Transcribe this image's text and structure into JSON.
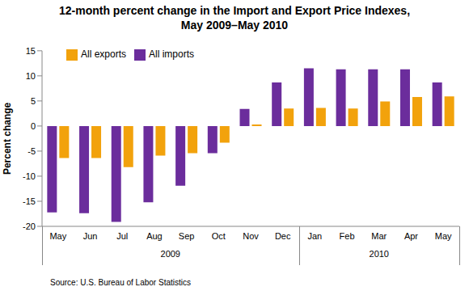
{
  "chart_data": {
    "type": "bar",
    "title": "12-month percent change in the Import and Export Price Indexes,",
    "subtitle": "May 2009–May 2010",
    "y_label": "Percent change",
    "source": "Source: U.S. Bureau of Labor Statistics",
    "categories": [
      "May",
      "Jun",
      "Jul",
      "Aug",
      "Sep",
      "Oct",
      "Nov",
      "Dec",
      "Jan",
      "Feb",
      "Mar",
      "Apr",
      "May"
    ],
    "x_groups": [
      {
        "label": "2009",
        "count": 8
      },
      {
        "label": "2010",
        "count": 5
      }
    ],
    "series": [
      {
        "name": "All imports",
        "color": "#6b2d9c",
        "values": [
          -17.2,
          -17.4,
          -19.1,
          -15.2,
          -11.9,
          -5.4,
          3.4,
          8.7,
          11.5,
          11.3,
          11.3,
          11.3,
          8.7
        ]
      },
      {
        "name": "All exports",
        "color": "#f2a20c",
        "values": [
          -6.4,
          -6.4,
          -8.2,
          -5.9,
          -5.4,
          -3.3,
          0.3,
          3.5,
          3.6,
          3.5,
          4.9,
          5.8,
          5.9
        ]
      }
    ],
    "ylim": [
      -20,
      15
    ],
    "yticks": [
      -20,
      -15,
      -10,
      -5,
      0,
      5,
      10,
      15
    ],
    "grid": false,
    "legend": "upper left"
  }
}
